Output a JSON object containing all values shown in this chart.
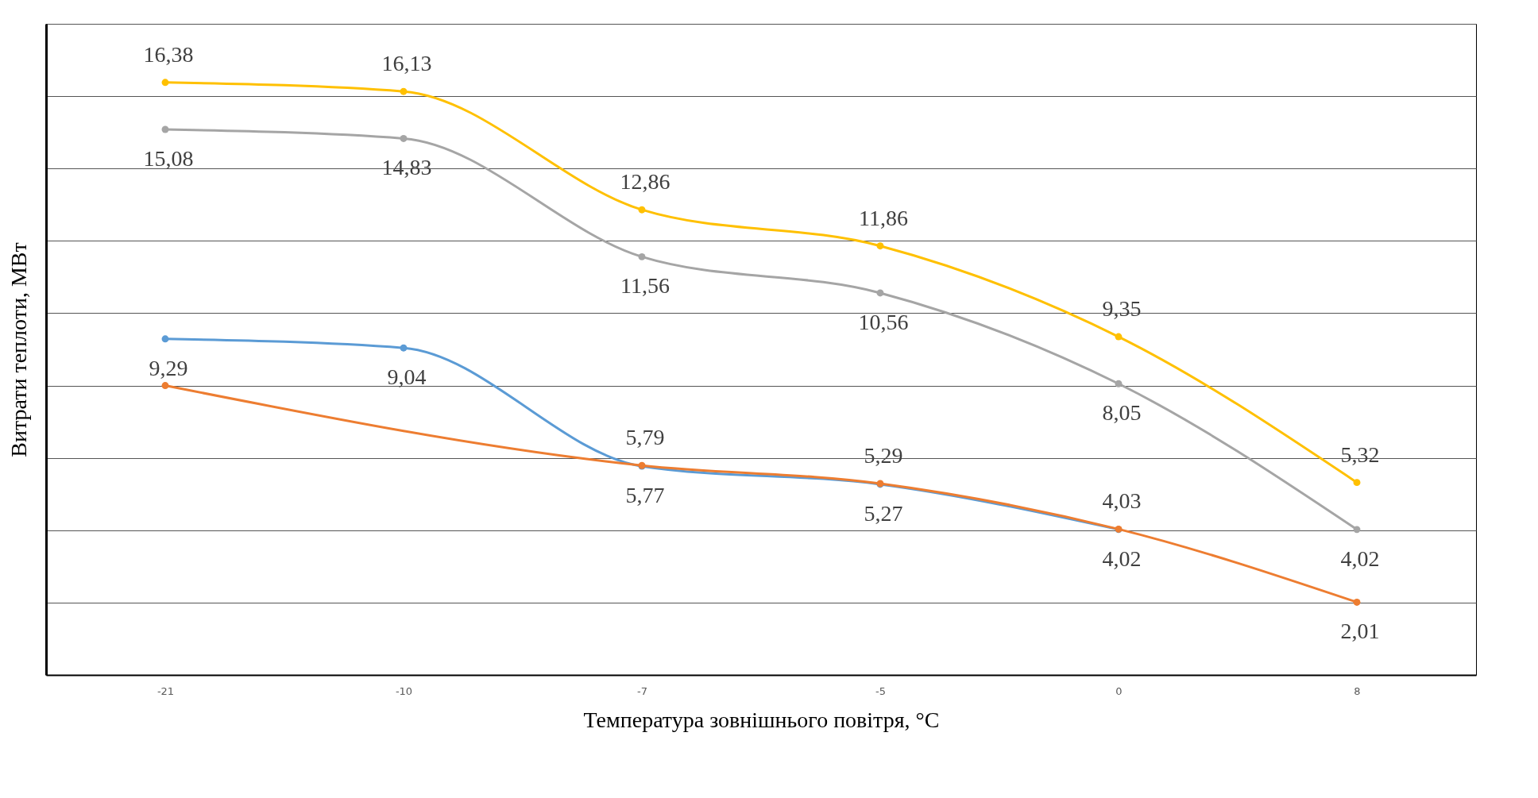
{
  "chart_data": {
    "type": "line",
    "xlabel": "Температура зовнішнього повітря, °С",
    "ylabel": "Витрати теплоти, МВт",
    "categories": [
      "-21",
      "-10",
      "-7",
      "-5",
      "0",
      "8"
    ],
    "series": [
      {
        "color": "#5b9bd5",
        "values": [
          9.29,
          9.04,
          5.77,
          5.27,
          4.02,
          null
        ],
        "value_labels": [
          "9,29",
          "9,04",
          "5,77",
          "5,27",
          "4,02",
          null
        ]
      },
      {
        "color": "#ed7d31",
        "values": [
          8.0,
          null,
          5.79,
          5.29,
          4.03,
          2.01
        ],
        "value_labels": [
          null,
          null,
          "5,79",
          "5,29",
          "4,03",
          "2,01"
        ]
      },
      {
        "color": "#a5a5a5",
        "values": [
          15.08,
          14.83,
          11.56,
          10.56,
          8.05,
          4.02
        ],
        "value_labels": [
          "15,08",
          "14,83",
          "11,56",
          "10,56",
          "8,05",
          "4,02"
        ]
      },
      {
        "color": "#ffc000",
        "values": [
          16.38,
          16.13,
          12.86,
          11.86,
          9.35,
          5.32
        ],
        "value_labels": [
          "16,38",
          "16,13",
          "12,86",
          "11,86",
          "9,35",
          "5,32"
        ]
      }
    ],
    "ylim": [
      0,
      18
    ],
    "yticks": [
      {
        "value": 0,
        "label": null
      },
      {
        "value": 2,
        "label": null
      },
      {
        "value": 4,
        "label": null
      },
      {
        "value": 6,
        "label": null
      },
      {
        "value": 8,
        "label": null
      },
      {
        "value": 10,
        "label": null
      },
      {
        "value": 12,
        "label": null
      },
      {
        "value": 14,
        "label": null
      },
      {
        "value": 16,
        "label": null
      },
      {
        "value": 18,
        "label": null
      }
    ],
    "grid": "y",
    "tick_labels": "x",
    "marker": "circle",
    "line_style": "solid"
  }
}
